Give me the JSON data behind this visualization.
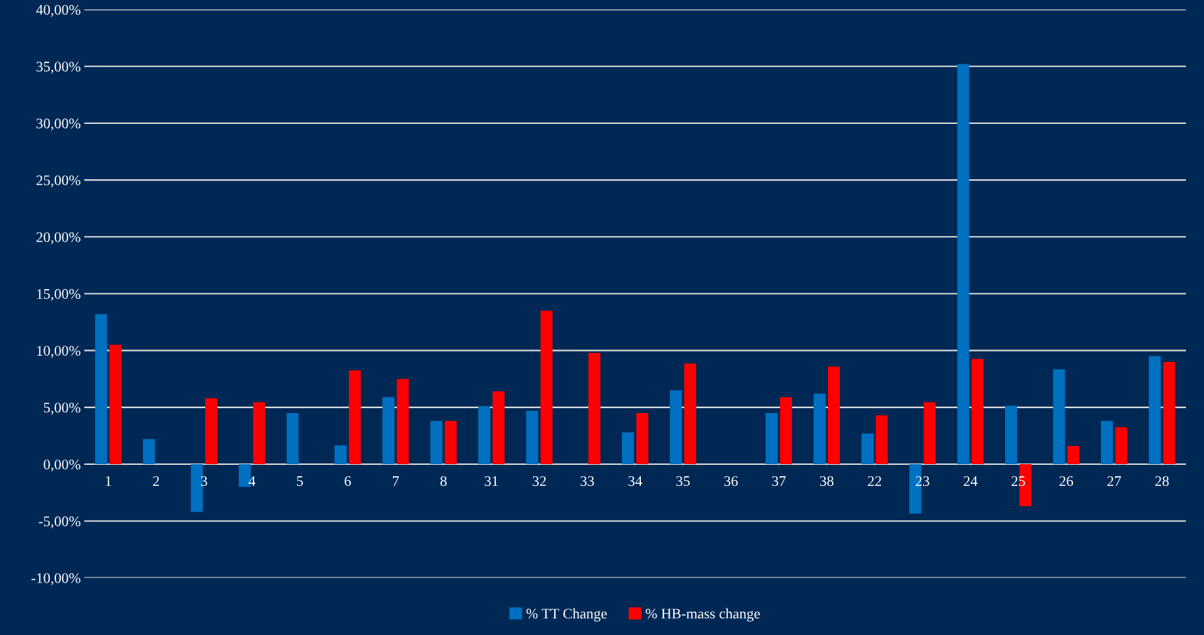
{
  "chart_data": {
    "type": "bar",
    "categories": [
      "1",
      "2",
      "3",
      "4",
      "5",
      "6",
      "7",
      "8",
      "31",
      "32",
      "33",
      "34",
      "35",
      "36",
      "37",
      "38",
      "22",
      "23",
      "24",
      "25",
      "26",
      "27",
      "28"
    ],
    "series": [
      {
        "name": "% TT Change",
        "color": "#0070c0",
        "values": [
          13.2,
          2.2,
          -4.2,
          -2.0,
          4.5,
          1.65,
          5.9,
          3.8,
          5.1,
          4.7,
          null,
          2.8,
          6.5,
          null,
          4.5,
          6.2,
          2.7,
          -4.35,
          35.2,
          5.15,
          8.35,
          3.8,
          9.5
        ]
      },
      {
        "name": "% HB-mass change",
        "color": "#ff0000",
        "values": [
          10.5,
          null,
          5.8,
          5.45,
          null,
          8.25,
          7.5,
          3.8,
          6.4,
          13.5,
          9.8,
          4.5,
          8.85,
          null,
          5.9,
          8.6,
          4.3,
          5.45,
          9.25,
          -3.7,
          1.6,
          3.25,
          9.0
        ]
      }
    ],
    "ylim": [
      -10,
      40
    ],
    "yticks": [
      {
        "value": -10,
        "label": "-10,00%"
      },
      {
        "value": -5,
        "label": "-5,00%"
      },
      {
        "value": 0,
        "label": "0,00%"
      },
      {
        "value": 5,
        "label": "5,00%"
      },
      {
        "value": 10,
        "label": "10,00%"
      },
      {
        "value": 15,
        "label": "15,00%"
      },
      {
        "value": 20,
        "label": "20,00%"
      },
      {
        "value": 25,
        "label": "25,00%"
      },
      {
        "value": 30,
        "label": "30,00%"
      },
      {
        "value": 35,
        "label": "35,00%"
      },
      {
        "value": 40,
        "label": "40,00%"
      }
    ],
    "grid": "y",
    "legend": "bottom"
  }
}
